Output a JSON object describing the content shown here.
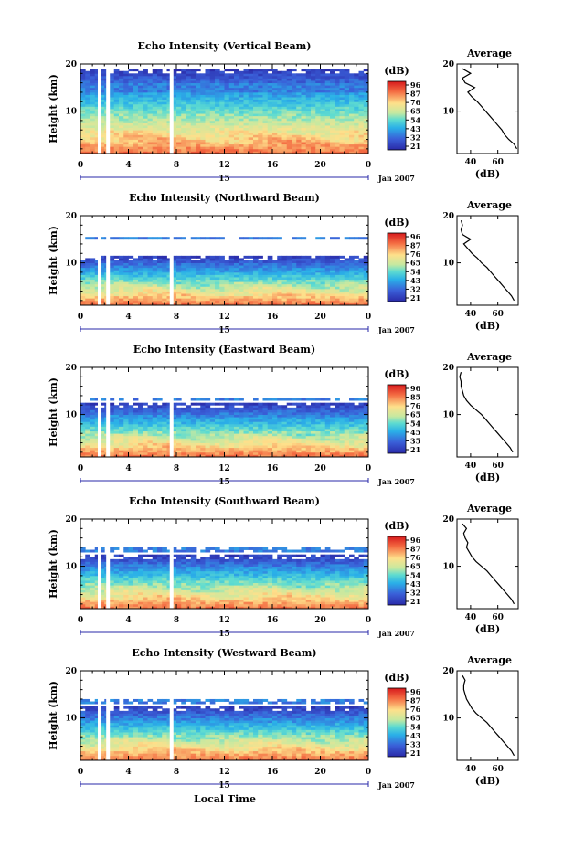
{
  "figure": {
    "xlabel": "Local Time",
    "height_label": "Height (km)",
    "avg_title": "Average",
    "avg_xlabel": "(dB)",
    "colorbar_unit": "(dB)",
    "date_day": "15",
    "date_month_year": "Jan 2007"
  },
  "chart_data": [
    {
      "type": "heatmap",
      "title": "Echo Intensity (Vertical Beam)",
      "x_ticks": [
        "0",
        "4",
        "8",
        "12",
        "16",
        "20",
        "0"
      ],
      "y_ticks": [
        "20",
        "10"
      ],
      "xlim": [
        0,
        24
      ],
      "ylim": [
        1,
        20
      ],
      "colorbar_ticks": [
        "96",
        "87",
        "76",
        "65",
        "54",
        "43",
        "32",
        "21"
      ],
      "colorbar_range": [
        21,
        96
      ],
      "signal_top_km": 19,
      "upper_layer_km": [
        14,
        16
      ],
      "data_gaps_hours": [
        1.6,
        2.3,
        7.6
      ],
      "average_profile": {
        "xlim": [
          30,
          75
        ],
        "x_ticks": [
          "40",
          "60"
        ],
        "y_ticks": [
          "20",
          "10"
        ],
        "height_km": [
          2,
          3,
          4,
          5,
          6,
          7,
          8,
          9,
          10,
          11,
          12,
          13,
          14,
          15,
          16,
          17,
          18,
          19
        ],
        "value_db": [
          74,
          72,
          68,
          65,
          63,
          60,
          57,
          54,
          51,
          48,
          45,
          41,
          38,
          43,
          36,
          34,
          40,
          34
        ]
      }
    },
    {
      "type": "heatmap",
      "title": "Echo Intensity (Northward Beam)",
      "x_ticks": [
        "0",
        "4",
        "8",
        "12",
        "16",
        "20",
        "0"
      ],
      "y_ticks": [
        "20",
        "10"
      ],
      "xlim": [
        0,
        24
      ],
      "ylim": [
        1,
        20
      ],
      "colorbar_ticks": [
        "96",
        "87",
        "76",
        "65",
        "54",
        "43",
        "32",
        "21"
      ],
      "colorbar_range": [
        21,
        96
      ],
      "signal_top_km": 11.5,
      "upper_layer_km": [
        15,
        15.6
      ],
      "data_gaps_hours": [
        1.6,
        2.3,
        7.6
      ],
      "average_profile": {
        "xlim": [
          30,
          75
        ],
        "x_ticks": [
          "40",
          "60"
        ],
        "y_ticks": [
          "20",
          "10"
        ],
        "height_km": [
          2,
          3,
          4,
          5,
          6,
          7,
          8,
          9,
          10,
          11,
          12,
          13,
          14,
          15,
          16,
          17,
          18,
          19
        ],
        "value_db": [
          72,
          70,
          67,
          64,
          61,
          58,
          55,
          52,
          48,
          45,
          41,
          38,
          35,
          40,
          34,
          33,
          34,
          33
        ]
      }
    },
    {
      "type": "heatmap",
      "title": "Echo Intensity (Eastward Beam)",
      "x_ticks": [
        "0",
        "4",
        "8",
        "12",
        "16",
        "20",
        "0"
      ],
      "y_ticks": [
        "20",
        "10"
      ],
      "xlim": [
        0,
        24
      ],
      "ylim": [
        1,
        20
      ],
      "colorbar_ticks": [
        "96",
        "85",
        "76",
        "65",
        "54",
        "45",
        "35",
        "21"
      ],
      "colorbar_range": [
        21,
        96
      ],
      "signal_top_km": 12.5,
      "upper_layer_km": [
        13,
        13.6
      ],
      "data_gaps_hours": [
        1.6,
        2.3,
        7.6
      ],
      "average_profile": {
        "xlim": [
          30,
          75
        ],
        "x_ticks": [
          "40",
          "60"
        ],
        "y_ticks": [
          "20",
          "10"
        ],
        "height_km": [
          2,
          3,
          4,
          5,
          6,
          7,
          8,
          9,
          10,
          11,
          12,
          13,
          14,
          15,
          16,
          17,
          18,
          19
        ],
        "value_db": [
          71,
          69,
          66,
          63,
          60,
          57,
          54,
          51,
          48,
          44,
          40,
          37,
          35,
          34,
          33,
          33,
          32,
          33
        ]
      }
    },
    {
      "type": "heatmap",
      "title": "Echo Intensity (Southward Beam)",
      "x_ticks": [
        "0",
        "4",
        "8",
        "12",
        "16",
        "20",
        "0"
      ],
      "y_ticks": [
        "20",
        "10"
      ],
      "xlim": [
        0,
        24
      ],
      "ylim": [
        1,
        20
      ],
      "colorbar_ticks": [
        "96",
        "87",
        "76",
        "65",
        "54",
        "43",
        "32",
        "21"
      ],
      "colorbar_range": [
        21,
        96
      ],
      "signal_top_km": 12.5,
      "upper_layer_km": [
        13,
        14
      ],
      "data_gaps_hours": [
        1.6,
        2.3,
        7.6
      ],
      "average_profile": {
        "xlim": [
          30,
          75
        ],
        "x_ticks": [
          "40",
          "60"
        ],
        "y_ticks": [
          "20",
          "10"
        ],
        "height_km": [
          2,
          3,
          4,
          5,
          6,
          7,
          8,
          9,
          10,
          11,
          12,
          13,
          14,
          15,
          16,
          17,
          18,
          19
        ],
        "value_db": [
          72,
          70,
          67,
          64,
          61,
          58,
          55,
          52,
          48,
          44,
          41,
          39,
          37,
          38,
          36,
          35,
          37,
          34
        ]
      }
    },
    {
      "type": "heatmap",
      "title": "Echo Intensity (Westward Beam)",
      "x_ticks": [
        "0",
        "4",
        "8",
        "12",
        "16",
        "20",
        "0"
      ],
      "y_ticks": [
        "20",
        "10"
      ],
      "xlim": [
        0,
        24
      ],
      "ylim": [
        1,
        20
      ],
      "colorbar_ticks": [
        "96",
        "87",
        "76",
        "65",
        "54",
        "43",
        "33",
        "21"
      ],
      "colorbar_range": [
        21,
        96
      ],
      "signal_top_km": 12.5,
      "upper_layer_km": [
        13,
        14
      ],
      "data_gaps_hours": [
        1.6,
        2.3,
        7.6
      ],
      "average_profile": {
        "xlim": [
          30,
          75
        ],
        "x_ticks": [
          "40",
          "60"
        ],
        "y_ticks": [
          "20",
          "10"
        ],
        "height_km": [
          2,
          3,
          4,
          5,
          6,
          7,
          8,
          9,
          10,
          11,
          12,
          13,
          14,
          15,
          16,
          17,
          18,
          19
        ],
        "value_db": [
          72,
          70,
          67,
          64,
          61,
          58,
          55,
          52,
          48,
          44,
          41,
          39,
          37,
          36,
          35,
          35,
          36,
          34
        ]
      }
    }
  ]
}
